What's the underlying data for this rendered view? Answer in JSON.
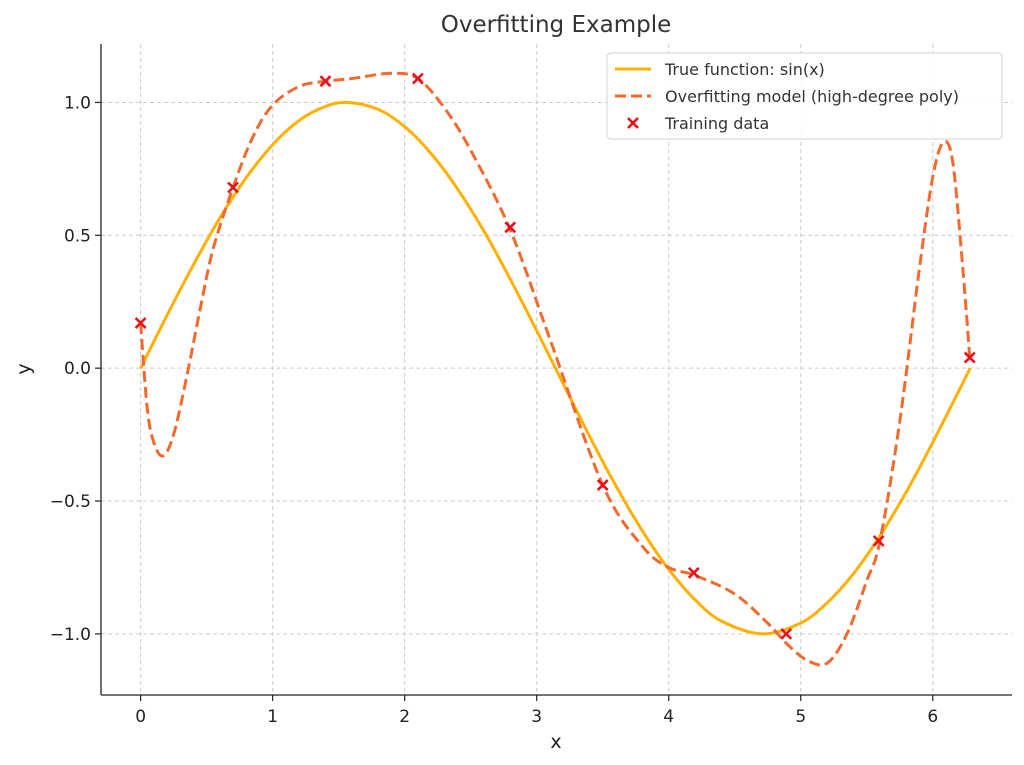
{
  "chart_data": {
    "type": "line",
    "title": "Overfitting Example",
    "xlabel": "x",
    "ylabel": "y",
    "xlim": [
      -0.3,
      6.6
    ],
    "ylim": [
      -1.23,
      1.22
    ],
    "grid": true,
    "legend_position": "top-right",
    "x_ticks": [
      0,
      1,
      2,
      3,
      4,
      5,
      6
    ],
    "x_tick_labels": [
      "0",
      "1",
      "2",
      "3",
      "4",
      "5",
      "6"
    ],
    "y_ticks": [
      1.0,
      0.5,
      0.0,
      -0.5,
      -1.0
    ],
    "y_tick_labels": [
      "1.0",
      "0.5",
      "0.0",
      "−0.5",
      "−1.0"
    ],
    "series": [
      {
        "name": "True function: sin(x)",
        "kind": "line",
        "style": "solid",
        "color": "#FFB000",
        "x": [
          0,
          0.2,
          0.4,
          0.6,
          0.8,
          1.0,
          1.2,
          1.4,
          1.571,
          1.8,
          2.0,
          2.2,
          2.4,
          2.6,
          2.8,
          3.0,
          3.142,
          3.4,
          3.6,
          3.8,
          4.0,
          4.2,
          4.4,
          4.712,
          5.0,
          5.2,
          5.4,
          5.6,
          5.8,
          6.0,
          6.2,
          6.283
        ],
        "y": [
          0,
          0.199,
          0.389,
          0.565,
          0.717,
          0.841,
          0.932,
          0.985,
          1.0,
          0.974,
          0.909,
          0.808,
          0.675,
          0.516,
          0.335,
          0.141,
          0,
          -0.256,
          -0.443,
          -0.612,
          -0.757,
          -0.872,
          -0.952,
          -1.0,
          -0.959,
          -0.883,
          -0.773,
          -0.631,
          -0.465,
          -0.279,
          -0.083,
          0
        ]
      },
      {
        "name": "Overfitting model (high-degree poly)",
        "kind": "line",
        "style": "dashed",
        "color": "#F26A2E",
        "x": [
          0,
          0.05,
          0.1,
          0.17,
          0.25,
          0.35,
          0.45,
          0.55,
          0.7,
          0.85,
          1.0,
          1.2,
          1.4,
          1.6,
          1.9,
          2.1,
          2.3,
          2.5,
          2.8,
          3.1,
          3.5,
          3.8,
          4.0,
          4.2,
          4.5,
          4.75,
          4.9,
          5.05,
          5.2,
          5.35,
          5.5,
          5.6,
          5.75,
          5.9,
          6.0,
          6.08,
          6.15,
          6.22,
          6.28
        ],
        "y": [
          0.17,
          -0.15,
          -0.28,
          -0.33,
          -0.25,
          -0.03,
          0.22,
          0.45,
          0.68,
          0.87,
          0.99,
          1.06,
          1.08,
          1.09,
          1.11,
          1.09,
          0.98,
          0.82,
          0.52,
          0.11,
          -0.44,
          -0.67,
          -0.75,
          -0.78,
          -0.85,
          -0.96,
          -1.04,
          -1.1,
          -1.11,
          -1.0,
          -0.8,
          -0.65,
          -0.2,
          0.38,
          0.72,
          0.85,
          0.78,
          0.42,
          0.04
        ]
      },
      {
        "name": "Training data",
        "kind": "scatter",
        "marker": "x",
        "color": "#E8111A",
        "x": [
          0,
          0.7,
          1.4,
          2.1,
          2.8,
          3.5,
          4.19,
          4.89,
          5.59,
          6.28
        ],
        "y": [
          0.17,
          0.68,
          1.08,
          1.09,
          0.53,
          -0.44,
          -0.77,
          -1.0,
          -0.65,
          0.04
        ]
      }
    ]
  }
}
